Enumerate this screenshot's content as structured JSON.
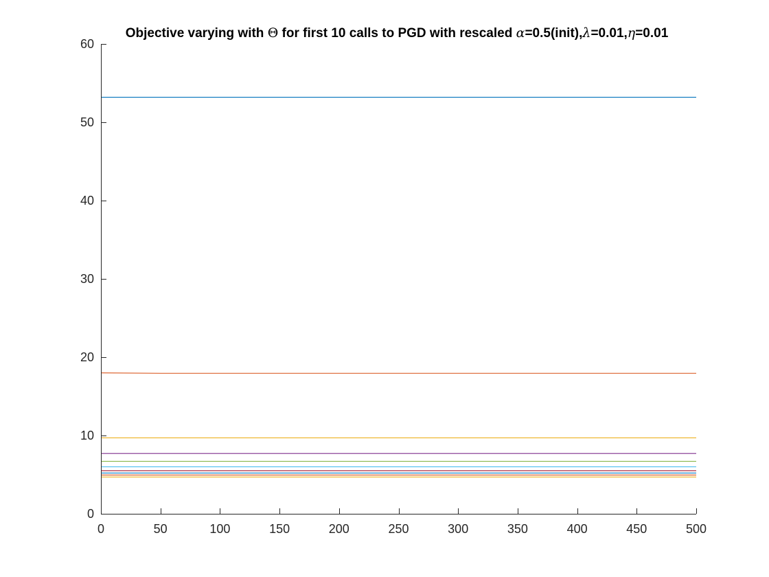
{
  "chart_data": {
    "type": "line",
    "title_parts": [
      {
        "text": "Objective varying with ",
        "style": "plain"
      },
      {
        "text": "Θ",
        "style": "greek-upright"
      },
      {
        "text": " for first 10 calls to PGD with rescaled ",
        "style": "plain"
      },
      {
        "text": "α",
        "style": "greek"
      },
      {
        "text": "=0.5(init),",
        "style": "plain"
      },
      {
        "text": "λ",
        "style": "greek"
      },
      {
        "text": "=0.01,",
        "style": "plain"
      },
      {
        "text": "η",
        "style": "greek"
      },
      {
        "text": "=0.01",
        "style": "plain"
      }
    ],
    "xlabel": "",
    "ylabel": "",
    "xlim": [
      0,
      500
    ],
    "ylim": [
      0,
      60
    ],
    "x_ticks": [
      0,
      50,
      100,
      150,
      200,
      250,
      300,
      350,
      400,
      450,
      500
    ],
    "y_ticks": [
      0,
      10,
      20,
      30,
      40,
      50,
      60
    ],
    "grid": false,
    "legend": "none",
    "x": [
      0,
      50,
      100,
      150,
      200,
      250,
      300,
      350,
      400,
      450,
      500
    ],
    "series": [
      {
        "color": "#0072BD",
        "values": [
          53.2,
          53.2,
          53.2,
          53.2,
          53.2,
          53.2,
          53.2,
          53.2,
          53.2,
          53.2,
          53.2
        ]
      },
      {
        "color": "#D95319",
        "values": [
          18.0,
          17.95,
          17.95,
          17.95,
          17.95,
          17.95,
          17.95,
          17.95,
          17.95,
          17.95,
          17.95
        ]
      },
      {
        "color": "#EDB120",
        "values": [
          9.7,
          9.7,
          9.7,
          9.7,
          9.7,
          9.7,
          9.7,
          9.7,
          9.7,
          9.7,
          9.7
        ]
      },
      {
        "color": "#7E2F8E",
        "values": [
          7.7,
          7.7,
          7.7,
          7.7,
          7.7,
          7.7,
          7.7,
          7.7,
          7.7,
          7.7,
          7.7
        ]
      },
      {
        "color": "#77AC30",
        "values": [
          6.7,
          6.7,
          6.7,
          6.7,
          6.7,
          6.7,
          6.7,
          6.7,
          6.7,
          6.7,
          6.7
        ]
      },
      {
        "color": "#4DBEEE",
        "values": [
          6.0,
          6.0,
          6.0,
          6.0,
          6.0,
          6.0,
          6.0,
          6.0,
          6.0,
          6.0,
          6.0
        ]
      },
      {
        "color": "#A2142F",
        "values": [
          5.5,
          5.5,
          5.5,
          5.5,
          5.5,
          5.5,
          5.5,
          5.5,
          5.5,
          5.5,
          5.5
        ]
      },
      {
        "color": "#0072BD",
        "values": [
          5.2,
          5.2,
          5.2,
          5.2,
          5.2,
          5.2,
          5.2,
          5.2,
          5.2,
          5.2,
          5.2
        ]
      },
      {
        "color": "#D95319",
        "values": [
          4.95,
          4.95,
          4.95,
          4.95,
          4.95,
          4.95,
          4.95,
          4.95,
          4.95,
          4.95,
          4.95
        ]
      },
      {
        "color": "#EDB120",
        "values": [
          4.7,
          4.7,
          4.7,
          4.7,
          4.7,
          4.7,
          4.7,
          4.7,
          4.7,
          4.7,
          4.7
        ]
      }
    ]
  }
}
